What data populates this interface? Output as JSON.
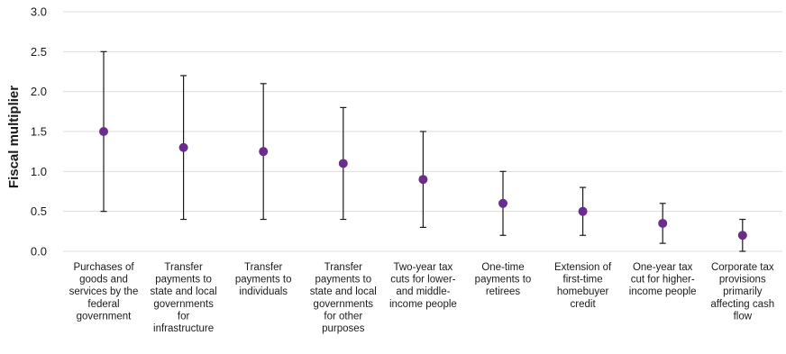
{
  "chart_data": {
    "type": "scatter",
    "title": "",
    "xlabel": "",
    "ylabel": "Fiscal multiplier",
    "ylim": [
      0,
      3.0
    ],
    "yticks": [
      "0.0",
      "0.5",
      "1.0",
      "1.5",
      "2.0",
      "2.5",
      "3.0"
    ],
    "grid": true,
    "legend": "none",
    "marker_color": "#6a2c8e",
    "error_bar_color": "#1a1a1a",
    "categories": [
      [
        "Purchases of",
        "goods and",
        "services by the",
        "federal",
        "government"
      ],
      [
        "Transfer",
        "payments to",
        "state and local",
        "governments",
        "for",
        "infrastructure"
      ],
      [
        "Transfer",
        "payments to",
        "individuals"
      ],
      [
        "Transfer",
        "payments to",
        "state and local",
        "governments",
        "for other",
        "purposes"
      ],
      [
        "Two-year tax",
        "cuts for lower-",
        "and middle-",
        "income people"
      ],
      [
        "One-time",
        "payments to",
        "retirees"
      ],
      [
        "Extension of",
        "first-time",
        "homebuyer",
        "credit"
      ],
      [
        "One-year tax",
        "cut for higher-",
        "income people"
      ],
      [
        "Corporate tax",
        "provisions",
        "primarily",
        "affecting cash",
        "flow"
      ]
    ],
    "values": [
      1.5,
      1.3,
      1.25,
      1.1,
      0.9,
      0.6,
      0.5,
      0.35,
      0.2
    ],
    "low": [
      0.5,
      0.4,
      0.4,
      0.4,
      0.3,
      0.2,
      0.2,
      0.1,
      0.0
    ],
    "high": [
      2.5,
      2.2,
      2.1,
      1.8,
      1.5,
      1.0,
      0.8,
      0.6,
      0.4
    ]
  }
}
